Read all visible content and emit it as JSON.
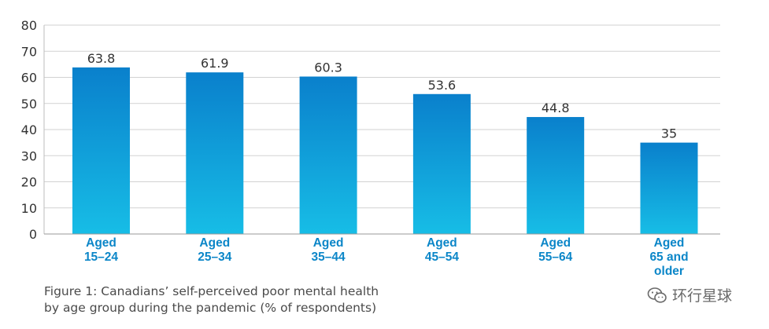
{
  "chart_data": {
    "type": "bar",
    "categories": [
      [
        "Aged",
        "15–24"
      ],
      [
        "Aged",
        "25–34"
      ],
      [
        "Aged",
        "35–44"
      ],
      [
        "Aged",
        "45–54"
      ],
      [
        "Aged",
        "55–64"
      ],
      [
        "Aged",
        "65 and",
        "older"
      ]
    ],
    "values": [
      63.8,
      61.9,
      60.3,
      53.6,
      44.8,
      35
    ],
    "value_labels": [
      "63.8",
      "61.9",
      "60.3",
      "53.6",
      "44.8",
      "35"
    ],
    "ylim": [
      0,
      80
    ],
    "yticks": [
      0,
      10,
      20,
      30,
      40,
      50,
      60,
      70,
      80
    ],
    "grid": true,
    "colors": {
      "bar_top": "#0a80cc",
      "bar_bottom": "#17bde6",
      "category_label": "#0b86c8",
      "grid": "#d2d2d2",
      "axis_text": "#333333"
    }
  },
  "caption": {
    "line1": "Figure 1: Canadians’ self-perceived poor mental health",
    "line2": "by age group during the pandemic (% of respondents)"
  },
  "watermark": {
    "text": "环行星球",
    "icon": "wechat-icon"
  }
}
